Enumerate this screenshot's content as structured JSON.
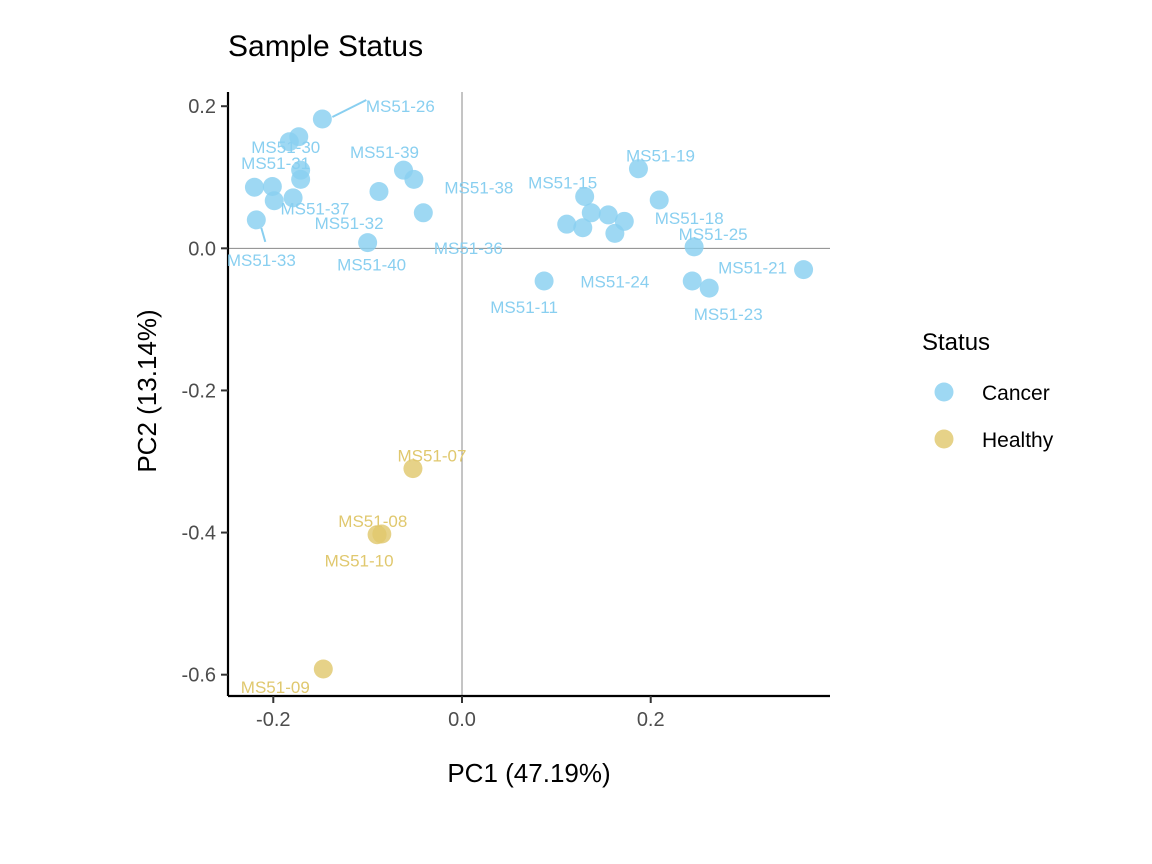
{
  "chart_data": {
    "type": "scatter",
    "title": "Sample Status",
    "xlabel": "PC1 (47.19%)",
    "ylabel": "PC2 (13.14%)",
    "xlim": [
      -0.248,
      0.39
    ],
    "ylim": [
      -0.63,
      0.22
    ],
    "xticks": [
      -0.2,
      0.0,
      0.2
    ],
    "yticks": [
      0.2,
      0.0,
      -0.2,
      -0.4,
      -0.6
    ],
    "xtick_labels": [
      "-0.2",
      "0.0",
      "0.2"
    ],
    "ytick_labels": [
      "0.2",
      "0.0",
      "-0.2",
      "-0.4",
      "-0.6"
    ],
    "grid": false,
    "zero_lines": true,
    "legend": {
      "title": "Status",
      "placement": "right",
      "entries": [
        {
          "name": "Cancer",
          "color": "#89CFF0"
        },
        {
          "name": "Healthy",
          "color": "#E0C86E"
        }
      ]
    },
    "series": [
      {
        "name": "Cancer",
        "color": "#89CFF0",
        "points": [
          {
            "label": "MS51-26",
            "x": -0.148,
            "y": 0.182
          },
          {
            "label": "MS51-30",
            "x": -0.173,
            "y": 0.157
          },
          {
            "label": "",
            "x": -0.183,
            "y": 0.15
          },
          {
            "label": "MS51-31",
            "x": -0.171,
            "y": 0.11
          },
          {
            "label": "",
            "x": -0.171,
            "y": 0.097
          },
          {
            "label": "",
            "x": -0.22,
            "y": 0.086
          },
          {
            "label": "",
            "x": -0.201,
            "y": 0.087
          },
          {
            "label": "",
            "x": -0.199,
            "y": 0.067
          },
          {
            "label": "MS51-32",
            "x": -0.179,
            "y": 0.071
          },
          {
            "label": "MS51-33",
            "x": -0.218,
            "y": 0.04
          },
          {
            "label": "MS51-39",
            "x": -0.062,
            "y": 0.11
          },
          {
            "label": "MS51-38",
            "x": -0.051,
            "y": 0.097
          },
          {
            "label": "MS51-37",
            "x": -0.088,
            "y": 0.08
          },
          {
            "label": "MS51-36",
            "x": -0.041,
            "y": 0.05
          },
          {
            "label": "MS51-40",
            "x": -0.1,
            "y": 0.008
          },
          {
            "label": "MS51-11",
            "x": 0.087,
            "y": -0.046
          },
          {
            "label": "MS51-15",
            "x": 0.13,
            "y": 0.073
          },
          {
            "label": "",
            "x": 0.111,
            "y": 0.034
          },
          {
            "label": "",
            "x": 0.128,
            "y": 0.029
          },
          {
            "label": "",
            "x": 0.137,
            "y": 0.05
          },
          {
            "label": "",
            "x": 0.155,
            "y": 0.047
          },
          {
            "label": "",
            "x": 0.172,
            "y": 0.038
          },
          {
            "label": "MS51-24",
            "x": 0.162,
            "y": 0.021
          },
          {
            "label": "MS51-19",
            "x": 0.187,
            "y": 0.112
          },
          {
            "label": "MS51-18",
            "x": 0.209,
            "y": 0.068
          },
          {
            "label": "MS51-25",
            "x": 0.246,
            "y": 0.002
          },
          {
            "label": "",
            "x": 0.244,
            "y": -0.046
          },
          {
            "label": "MS51-23",
            "x": 0.262,
            "y": -0.056
          },
          {
            "label": "MS51-21",
            "x": 0.362,
            "y": -0.03
          }
        ]
      },
      {
        "name": "Healthy",
        "color": "#E0C86E",
        "points": [
          {
            "label": "MS51-07",
            "x": -0.052,
            "y": -0.31
          },
          {
            "label": "MS51-08",
            "x": -0.085,
            "y": -0.402
          },
          {
            "label": "MS51-10",
            "x": -0.09,
            "y": -0.403
          },
          {
            "label": "MS51-09",
            "x": -0.147,
            "y": -0.592
          }
        ]
      }
    ]
  }
}
